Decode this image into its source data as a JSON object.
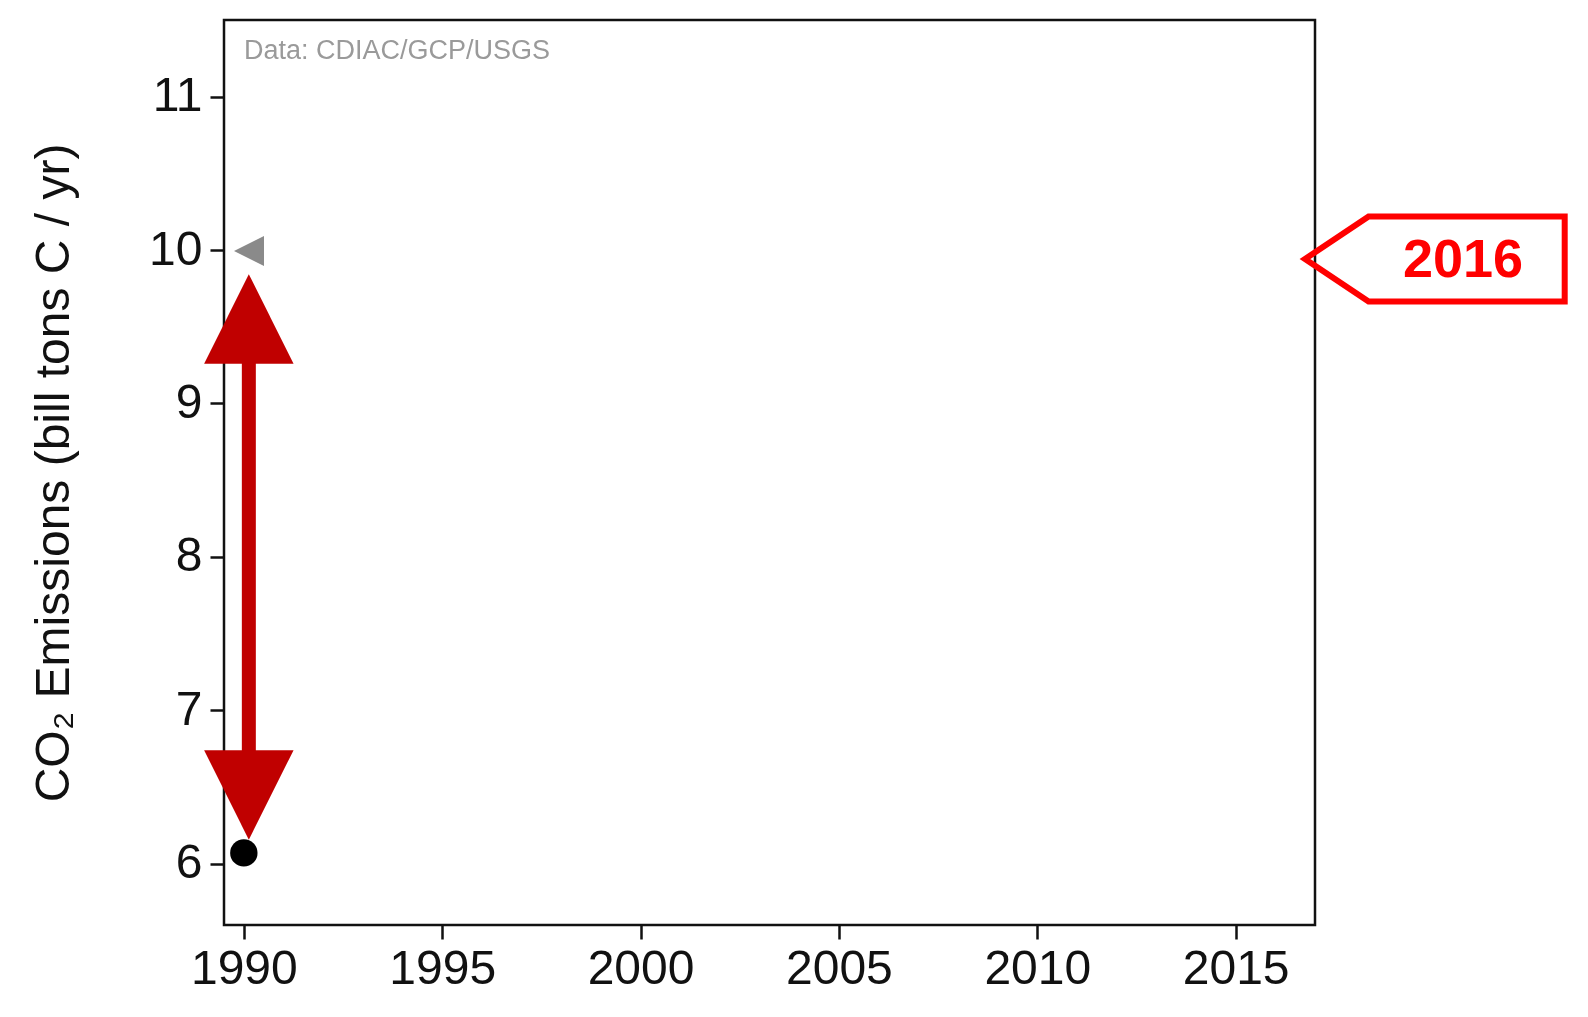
{
  "chart_data": {
    "type": "scatter",
    "x": [
      1990
    ],
    "series": [
      {
        "color": "#000000",
        "values": [
          6.07
        ]
      }
    ],
    "marker": "circle",
    "xlim": [
      1989.5,
      2017
    ],
    "xticks": [
      1990,
      1995,
      2000,
      2005,
      2010,
      2015
    ],
    "ylim": [
      5.6,
      11.5
    ],
    "yticks": [
      6,
      7,
      8,
      9,
      10,
      11
    ],
    "ylabel": "CO₂ Emissions (bill tons C / yr)",
    "grid": false,
    "annotations": [
      "Data: CDIAC/GCP/USGS",
      "2016"
    ]
  }
}
